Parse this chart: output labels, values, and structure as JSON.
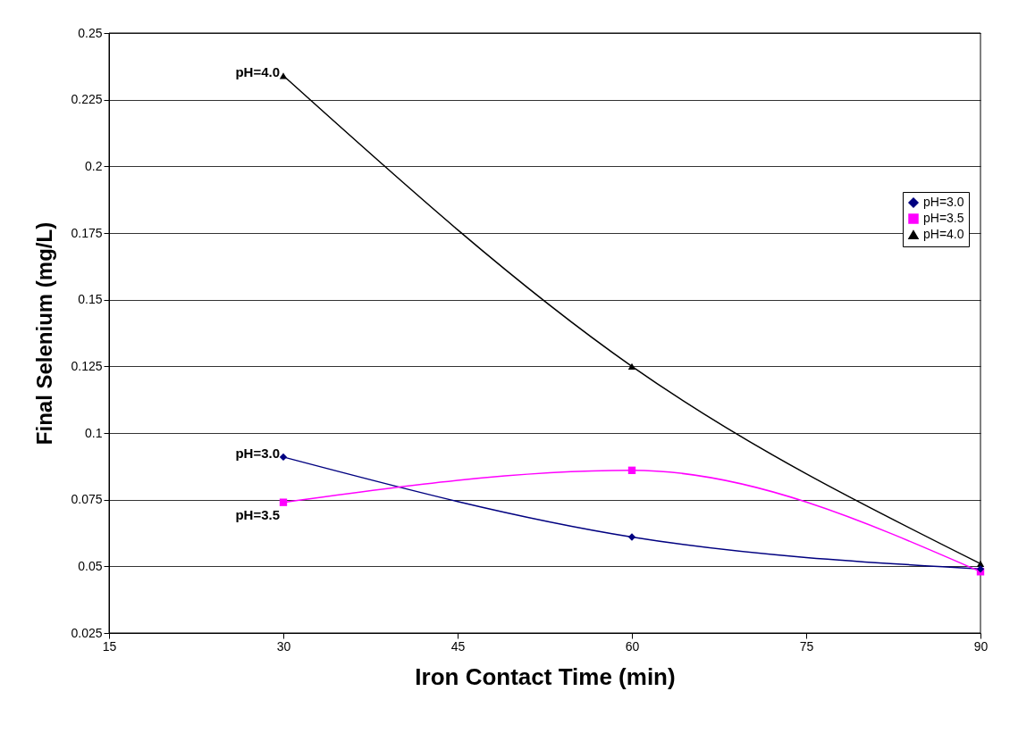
{
  "chart_data": {
    "type": "line",
    "xlabel": "Iron Contact Time (min)",
    "ylabel": "Final Selenium (mg/L)",
    "x": [
      30,
      60,
      90
    ],
    "series": [
      {
        "name": "pH=3.0",
        "color": "#000080",
        "marker": "diamond",
        "values": [
          0.091,
          0.061,
          0.049
        ]
      },
      {
        "name": "pH=3.5",
        "color": "#ff00ff",
        "marker": "square",
        "values": [
          0.074,
          0.086,
          0.048
        ]
      },
      {
        "name": "pH=4.0",
        "color": "#000000",
        "marker": "triangle",
        "values": [
          0.234,
          0.125,
          0.051
        ]
      }
    ],
    "xlim": [
      15,
      90
    ],
    "xticks": [
      15,
      30,
      45,
      60,
      75,
      90
    ],
    "ylim": [
      0.025,
      0.25
    ],
    "yticks": [
      0.025,
      0.05,
      0.075,
      0.1,
      0.125,
      0.15,
      0.175,
      0.2,
      0.225,
      0.25
    ],
    "grid": "y",
    "legend": "right",
    "line_style": "solid"
  }
}
